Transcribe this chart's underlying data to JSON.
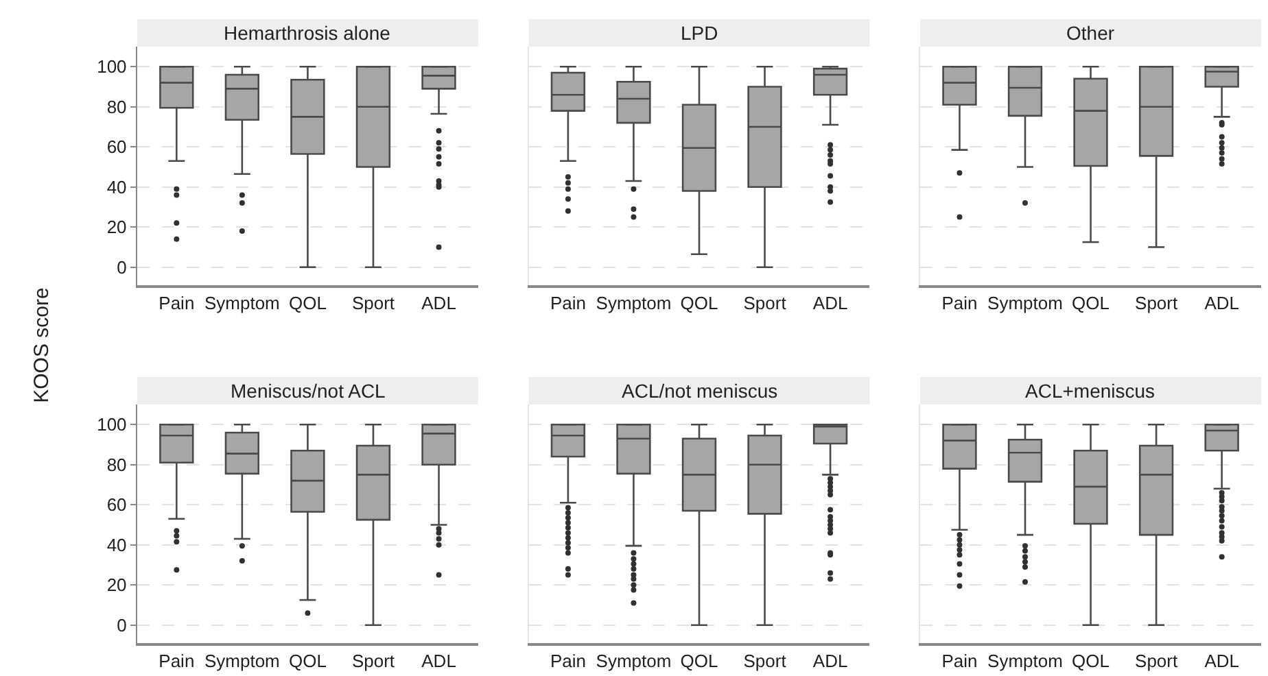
{
  "chart_data": [
    {
      "type": "box",
      "title": "Hemarthrosis alone",
      "ylabel": "KOOS score",
      "categories": [
        "Pain",
        "Symptom",
        "QOL",
        "Sport",
        "ADL"
      ],
      "ylim": [
        -9,
        110
      ],
      "yticks": [
        0,
        20,
        40,
        60,
        80,
        100
      ],
      "grid": "y",
      "series": [
        {
          "color": "#a6a6a6",
          "boxes": [
            {
              "low": 53,
              "q1": 79.5,
              "median": 92,
              "q3": 100,
              "high": 100,
              "outliers": [
                39,
                36,
                22,
                14
              ]
            },
            {
              "low": 46.5,
              "q1": 73.5,
              "median": 89,
              "q3": 96,
              "high": 100,
              "outliers": [
                36,
                32,
                18
              ]
            },
            {
              "low": 0,
              "q1": 56.5,
              "median": 75,
              "q3": 93.5,
              "high": 100
            },
            {
              "low": 0,
              "q1": 50,
              "median": 80,
              "q3": 100,
              "high": 100
            },
            {
              "low": 76.5,
              "q1": 89,
              "median": 95.5,
              "q3": 100,
              "high": 100,
              "outliers": [
                68,
                62,
                59,
                55,
                51.5,
                43,
                41,
                40,
                10
              ]
            }
          ]
        }
      ]
    },
    {
      "type": "box",
      "title": "LPD",
      "categories": [
        "Pain",
        "Symptom",
        "QOL",
        "Sport",
        "ADL"
      ],
      "ylim": [
        -9,
        110
      ],
      "yticks": [
        0,
        20,
        40,
        60,
        80,
        100
      ],
      "grid": "y",
      "tick_labels": "x",
      "series": [
        {
          "color": "#a6a6a6",
          "boxes": [
            {
              "low": 53,
              "q1": 78,
              "median": 86,
              "q3": 97,
              "high": 100,
              "outliers": [
                45,
                42,
                39,
                34,
                28
              ]
            },
            {
              "low": 43,
              "q1": 72,
              "median": 84,
              "q3": 92.5,
              "high": 100,
              "outliers": [
                39,
                29,
                25
              ]
            },
            {
              "low": 6.5,
              "q1": 38,
              "median": 59.5,
              "q3": 81,
              "high": 100
            },
            {
              "low": 0,
              "q1": 40,
              "median": 70,
              "q3": 90,
              "high": 100
            },
            {
              "low": 71,
              "q1": 86,
              "median": 96,
              "q3": 99,
              "high": 100,
              "outliers": [
                61,
                58.5,
                56,
                53,
                51.5,
                45.5,
                40,
                38,
                32.5
              ]
            }
          ]
        }
      ]
    },
    {
      "type": "box",
      "title": "Other",
      "categories": [
        "Pain",
        "Symptom",
        "QOL",
        "Sport",
        "ADL"
      ],
      "ylim": [
        -9,
        110
      ],
      "yticks": [
        0,
        20,
        40,
        60,
        80,
        100
      ],
      "grid": "y",
      "tick_labels": "x",
      "series": [
        {
          "color": "#a6a6a6",
          "boxes": [
            {
              "low": 58.5,
              "q1": 81,
              "median": 92,
              "q3": 100,
              "high": 100,
              "outliers": [
                47,
                25
              ]
            },
            {
              "low": 50,
              "q1": 75.5,
              "median": 89.5,
              "q3": 100,
              "high": 100,
              "outliers": [
                32
              ]
            },
            {
              "low": 12.5,
              "q1": 50.5,
              "median": 78,
              "q3": 94,
              "high": 100
            },
            {
              "low": 10,
              "q1": 55.5,
              "median": 80,
              "q3": 100,
              "high": 100
            },
            {
              "low": 75,
              "q1": 90,
              "median": 97.5,
              "q3": 100,
              "high": 100,
              "outliers": [
                72,
                71,
                65,
                62,
                59.5,
                57,
                54,
                51.5
              ]
            }
          ]
        }
      ]
    },
    {
      "type": "box",
      "title": "Meniscus/not ACL",
      "categories": [
        "Pain",
        "Symptom",
        "QOL",
        "Sport",
        "ADL"
      ],
      "ylim": [
        -9,
        110
      ],
      "yticks": [
        0,
        20,
        40,
        60,
        80,
        100
      ],
      "grid": "y",
      "series": [
        {
          "color": "#a6a6a6",
          "boxes": [
            {
              "low": 53,
              "q1": 81,
              "median": 94.5,
              "q3": 100,
              "high": 100,
              "outliers": [
                47,
                44.5,
                41.5,
                27.5
              ]
            },
            {
              "low": 43,
              "q1": 75.5,
              "median": 85.5,
              "q3": 96,
              "high": 100,
              "outliers": [
                39.5,
                32
              ]
            },
            {
              "low": 12.5,
              "q1": 56.5,
              "median": 72,
              "q3": 87,
              "high": 100,
              "outliers": [
                6
              ]
            },
            {
              "low": 0,
              "q1": 52.5,
              "median": 75,
              "q3": 89.5,
              "high": 100
            },
            {
              "low": 50,
              "q1": 80,
              "median": 95.5,
              "q3": 100,
              "high": 100,
              "outliers": [
                48,
                46,
                43,
                40,
                25
              ]
            }
          ]
        }
      ]
    },
    {
      "type": "box",
      "title": "ACL/not meniscus",
      "categories": [
        "Pain",
        "Symptom",
        "QOL",
        "Sport",
        "ADL"
      ],
      "ylim": [
        -9,
        110
      ],
      "yticks": [
        0,
        20,
        40,
        60,
        80,
        100
      ],
      "grid": "y",
      "tick_labels": "x",
      "series": [
        {
          "color": "#a6a6a6",
          "boxes": [
            {
              "low": 61,
              "q1": 84,
              "median": 94.5,
              "q3": 100,
              "high": 100,
              "outliers": [
                58.5,
                56,
                53.5,
                51,
                48.5,
                46,
                43.5,
                41,
                38.5,
                36,
                28,
                25
              ]
            },
            {
              "low": 39.5,
              "q1": 75.5,
              "median": 93,
              "q3": 100,
              "high": 100,
              "outliers": [
                36,
                33,
                30.5,
                28,
                25,
                23,
                20,
                17.5,
                11
              ]
            },
            {
              "low": 0,
              "q1": 57,
              "median": 75,
              "q3": 93,
              "high": 100
            },
            {
              "low": 0,
              "q1": 55.5,
              "median": 80,
              "q3": 94.5,
              "high": 100
            },
            {
              "low": 75,
              "q1": 90.5,
              "median": 99,
              "q3": 100,
              "high": 100,
              "outliers": [
                73,
                71,
                69,
                67,
                65,
                57.5,
                54,
                52,
                50,
                48,
                46,
                36,
                35,
                26,
                23
              ]
            }
          ]
        }
      ]
    },
    {
      "type": "box",
      "title": "ACL+meniscus",
      "categories": [
        "Pain",
        "Symptom",
        "QOL",
        "Sport",
        "ADL"
      ],
      "ylim": [
        -9,
        110
      ],
      "yticks": [
        0,
        20,
        40,
        60,
        80,
        100
      ],
      "grid": "y",
      "tick_labels": "x",
      "series": [
        {
          "color": "#a6a6a6",
          "boxes": [
            {
              "low": 47.5,
              "q1": 78,
              "median": 92,
              "q3": 100,
              "high": 100,
              "outliers": [
                45,
                42.5,
                40,
                37.5,
                35,
                30.5,
                25,
                19.5
              ]
            },
            {
              "low": 45,
              "q1": 71.5,
              "median": 86,
              "q3": 92.5,
              "high": 100,
              "outliers": [
                39.5,
                37,
                34,
                31.5,
                29,
                21.5
              ]
            },
            {
              "low": 0,
              "q1": 50.5,
              "median": 69,
              "q3": 87,
              "high": 100
            },
            {
              "low": 0,
              "q1": 45,
              "median": 75,
              "q3": 89.5,
              "high": 100
            },
            {
              "low": 68,
              "q1": 87,
              "median": 97,
              "q3": 100,
              "high": 100,
              "outliers": [
                66,
                64,
                62,
                59,
                57,
                54.5,
                52,
                49,
                46,
                44,
                42,
                34
              ]
            }
          ]
        }
      ]
    }
  ]
}
